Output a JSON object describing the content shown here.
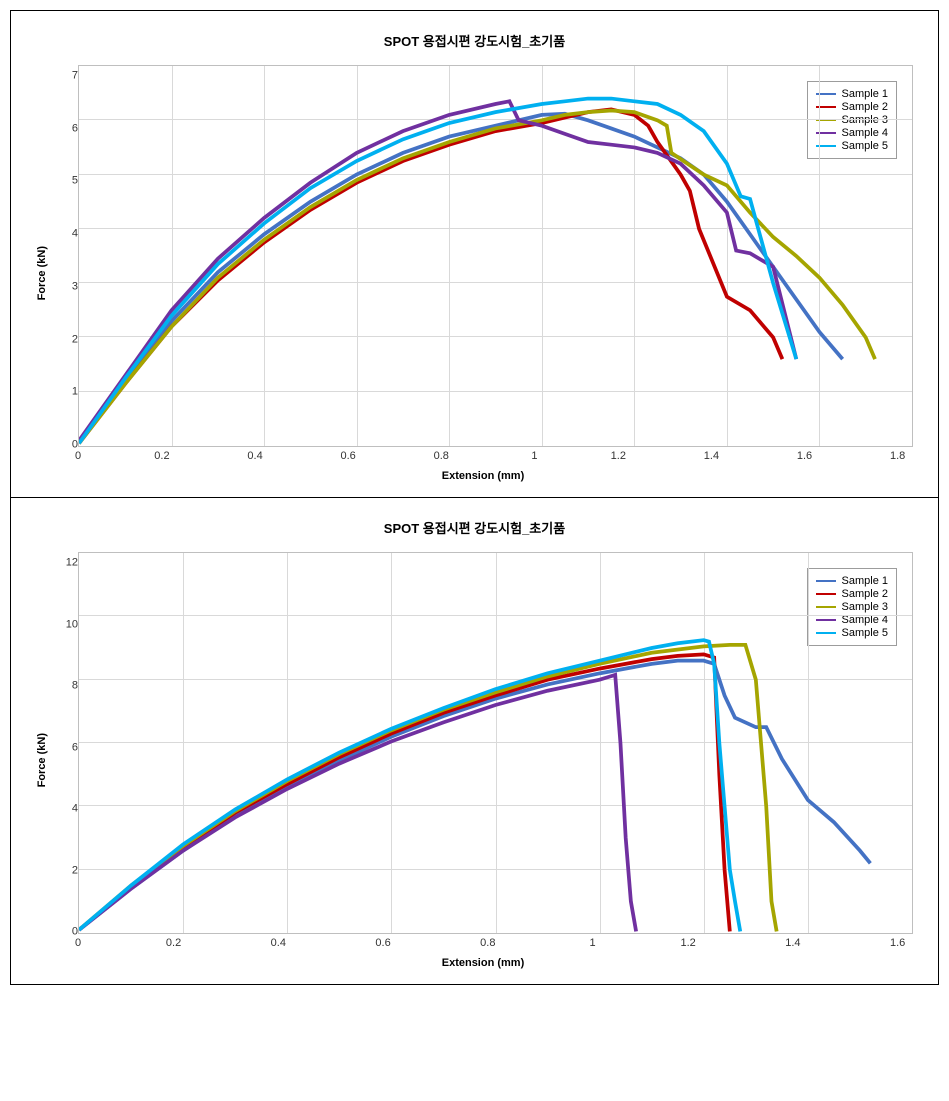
{
  "chart1": {
    "type": "line",
    "title": "SPOT 용접시편 강도시험_초기품",
    "xlabel": "Extension (mm)",
    "ylabel": "Force (kN)",
    "xlim": [
      0,
      1.8
    ],
    "ylim": [
      0,
      7
    ],
    "xticks": [
      0,
      0.2,
      0.4,
      0.6,
      0.8,
      1.0,
      1.2,
      1.4,
      1.6,
      1.8
    ],
    "yticks": [
      0,
      1,
      2,
      3,
      4,
      5,
      6,
      7
    ],
    "title_fontsize": 13,
    "label_fontsize": 11,
    "tick_fontsize": 11,
    "background_color": "#ffffff",
    "grid_color": "#d9d9d9",
    "border_color": "#bfbfbf",
    "line_width": 1.5,
    "legend_position": "top-right",
    "legend_items": [
      "Sample 1",
      "Sample 2",
      "Sample 3",
      "Sample 4",
      "Sample 5"
    ],
    "series_colors": [
      "#4472c4",
      "#c00000",
      "#a5a500",
      "#7030a0",
      "#00b0f0"
    ],
    "series": {
      "Sample1": {
        "color": "#4472c4",
        "x": [
          0,
          0.1,
          0.2,
          0.3,
          0.4,
          0.5,
          0.6,
          0.7,
          0.8,
          0.9,
          1.0,
          1.05,
          1.1,
          1.15,
          1.2,
          1.25,
          1.3,
          1.35,
          1.4,
          1.45,
          1.5,
          1.55,
          1.6,
          1.65
        ],
        "y": [
          0.05,
          1.2,
          2.3,
          3.2,
          3.9,
          4.5,
          5.0,
          5.4,
          5.7,
          5.9,
          6.1,
          6.12,
          6.0,
          5.85,
          5.7,
          5.5,
          5.3,
          5.0,
          4.5,
          3.9,
          3.3,
          2.7,
          2.1,
          1.6
        ]
      },
      "Sample2": {
        "color": "#c00000",
        "x": [
          0,
          0.1,
          0.2,
          0.3,
          0.4,
          0.5,
          0.6,
          0.7,
          0.8,
          0.9,
          1.0,
          1.05,
          1.1,
          1.15,
          1.2,
          1.23,
          1.25,
          1.3,
          1.32,
          1.34,
          1.4,
          1.45,
          1.5,
          1.52
        ],
        "y": [
          0.05,
          1.15,
          2.2,
          3.05,
          3.75,
          4.35,
          4.85,
          5.25,
          5.55,
          5.8,
          5.95,
          6.05,
          6.15,
          6.2,
          6.1,
          5.9,
          5.6,
          5.0,
          4.7,
          4.0,
          2.75,
          2.5,
          2.0,
          1.6
        ]
      },
      "Sample3": {
        "color": "#a5a500",
        "x": [
          0,
          0.1,
          0.2,
          0.3,
          0.4,
          0.5,
          0.6,
          0.7,
          0.8,
          0.9,
          1.0,
          1.05,
          1.1,
          1.15,
          1.2,
          1.25,
          1.27,
          1.28,
          1.35,
          1.4,
          1.45,
          1.5,
          1.55,
          1.6,
          1.65,
          1.7,
          1.72
        ],
        "y": [
          0.05,
          1.15,
          2.2,
          3.1,
          3.8,
          4.4,
          4.9,
          5.3,
          5.6,
          5.85,
          6.0,
          6.1,
          6.15,
          6.18,
          6.15,
          6.0,
          5.9,
          5.4,
          5.0,
          4.8,
          4.3,
          3.85,
          3.5,
          3.1,
          2.6,
          2.0,
          1.6
        ]
      },
      "Sample4": {
        "color": "#7030a0",
        "x": [
          0,
          0.1,
          0.2,
          0.3,
          0.4,
          0.5,
          0.6,
          0.7,
          0.8,
          0.9,
          0.93,
          0.95,
          1.0,
          1.05,
          1.1,
          1.15,
          1.2,
          1.25,
          1.3,
          1.35,
          1.4,
          1.42,
          1.45,
          1.5,
          1.55
        ],
        "y": [
          0.1,
          1.3,
          2.5,
          3.45,
          4.2,
          4.85,
          5.4,
          5.8,
          6.1,
          6.3,
          6.35,
          6.0,
          5.9,
          5.75,
          5.6,
          5.55,
          5.5,
          5.4,
          5.2,
          4.8,
          4.3,
          3.6,
          3.55,
          3.3,
          1.6
        ]
      },
      "Sample5": {
        "color": "#00b0f0",
        "x": [
          0,
          0.1,
          0.2,
          0.3,
          0.4,
          0.5,
          0.6,
          0.7,
          0.8,
          0.9,
          1.0,
          1.05,
          1.1,
          1.15,
          1.2,
          1.25,
          1.3,
          1.35,
          1.4,
          1.43,
          1.45,
          1.5,
          1.55
        ],
        "y": [
          0.05,
          1.25,
          2.4,
          3.35,
          4.1,
          4.75,
          5.25,
          5.65,
          5.95,
          6.15,
          6.3,
          6.35,
          6.4,
          6.4,
          6.35,
          6.3,
          6.1,
          5.8,
          5.2,
          4.6,
          4.55,
          3.0,
          1.6
        ]
      }
    }
  },
  "chart2": {
    "type": "line",
    "title": "SPOT 용접시편 강도시험_초기품",
    "xlabel": "Extension (mm)",
    "ylabel": "Force (kN)",
    "xlim": [
      0,
      1.6
    ],
    "ylim": [
      0,
      12
    ],
    "xticks": [
      0,
      0.2,
      0.4,
      0.6,
      0.8,
      1.0,
      1.2,
      1.4,
      1.6
    ],
    "yticks": [
      0,
      2,
      4,
      6,
      8,
      10,
      12
    ],
    "title_fontsize": 13,
    "label_fontsize": 11,
    "tick_fontsize": 11,
    "background_color": "#ffffff",
    "grid_color": "#d9d9d9",
    "border_color": "#bfbfbf",
    "line_width": 1.5,
    "legend_position": "top-right",
    "legend_items": [
      "Sample 1",
      "Sample 2",
      "Sample 3",
      "Sample 4",
      "Sample 5"
    ],
    "series_colors": [
      "#4472c4",
      "#c00000",
      "#a5a500",
      "#7030a0",
      "#00b0f0"
    ],
    "series": {
      "Sample1": {
        "color": "#4472c4",
        "x": [
          0,
          0.1,
          0.2,
          0.3,
          0.4,
          0.5,
          0.6,
          0.7,
          0.8,
          0.9,
          1.0,
          1.1,
          1.15,
          1.2,
          1.22,
          1.24,
          1.26,
          1.3,
          1.32,
          1.35,
          1.4,
          1.45,
          1.5,
          1.52
        ],
        "y": [
          0.1,
          1.4,
          2.6,
          3.7,
          4.6,
          5.45,
          6.2,
          6.85,
          7.4,
          7.85,
          8.2,
          8.5,
          8.6,
          8.6,
          8.5,
          7.5,
          6.8,
          6.5,
          6.5,
          5.5,
          4.2,
          3.5,
          2.6,
          2.2
        ]
      },
      "Sample2": {
        "color": "#c00000",
        "x": [
          0,
          0.1,
          0.2,
          0.3,
          0.4,
          0.5,
          0.6,
          0.7,
          0.8,
          0.9,
          1.0,
          1.1,
          1.15,
          1.2,
          1.22,
          1.23,
          1.24,
          1.25
        ],
        "y": [
          0.1,
          1.45,
          2.7,
          3.8,
          4.7,
          5.55,
          6.3,
          6.95,
          7.5,
          8.0,
          8.35,
          8.65,
          8.75,
          8.8,
          8.7,
          5.0,
          2.0,
          0.05
        ]
      },
      "Sample3": {
        "color": "#a5a500",
        "x": [
          0,
          0.1,
          0.2,
          0.3,
          0.4,
          0.5,
          0.6,
          0.7,
          0.8,
          0.9,
          1.0,
          1.1,
          1.2,
          1.25,
          1.28,
          1.3,
          1.32,
          1.33,
          1.34
        ],
        "y": [
          0.1,
          1.5,
          2.75,
          3.85,
          4.8,
          5.65,
          6.4,
          7.05,
          7.6,
          8.1,
          8.5,
          8.85,
          9.05,
          9.1,
          9.1,
          8.0,
          4.0,
          1.0,
          0.05
        ]
      },
      "Sample4": {
        "color": "#7030a0",
        "x": [
          0,
          0.1,
          0.2,
          0.3,
          0.4,
          0.5,
          0.6,
          0.7,
          0.8,
          0.9,
          1.0,
          1.02,
          1.03,
          1.04,
          1.05,
          1.06,
          1.07
        ],
        "y": [
          0.1,
          1.4,
          2.6,
          3.65,
          4.55,
          5.35,
          6.05,
          6.65,
          7.2,
          7.65,
          8.0,
          8.1,
          8.15,
          6.0,
          3.0,
          1.0,
          0.05
        ]
      },
      "Sample5": {
        "color": "#00b0f0",
        "x": [
          0,
          0.1,
          0.2,
          0.3,
          0.4,
          0.5,
          0.6,
          0.7,
          0.8,
          0.9,
          1.0,
          1.1,
          1.15,
          1.2,
          1.21,
          1.22,
          1.23,
          1.24,
          1.25,
          1.26,
          1.27
        ],
        "y": [
          0.1,
          1.5,
          2.8,
          3.9,
          4.85,
          5.7,
          6.45,
          7.1,
          7.7,
          8.2,
          8.6,
          9.0,
          9.15,
          9.25,
          9.2,
          8.5,
          6.0,
          4.0,
          2.0,
          1.0,
          0.05
        ]
      }
    }
  }
}
